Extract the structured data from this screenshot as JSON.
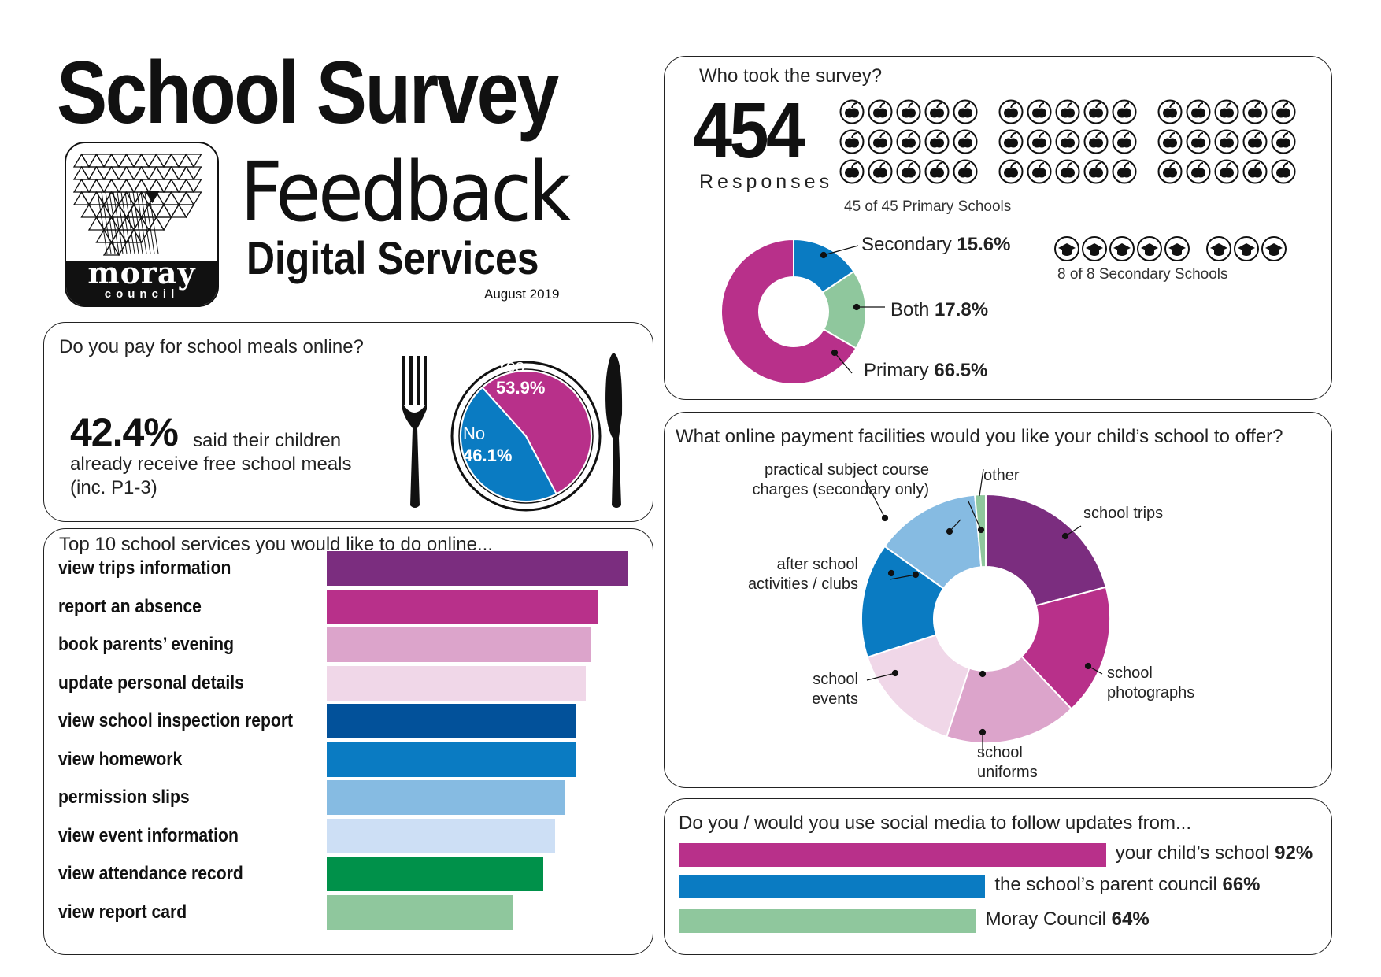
{
  "header": {
    "title": "School Survey",
    "subtitle": "Feedback",
    "department": "Digital Services",
    "date": "August 2019",
    "logo_text": "moray",
    "logo_subtext": "council"
  },
  "colors": {
    "purple": "#7b2d7f",
    "magenta": "#b8308a",
    "pink": "#dca4cb",
    "light_pink": "#f0d7e8",
    "navy": "#02519a",
    "blue": "#0a7bc2",
    "light_blue": "#86bbe2",
    "pale_blue": "#cddff5",
    "green": "#00914a",
    "light_green": "#8fc79d"
  },
  "respondents": {
    "title": "Who took the survey?",
    "count": "454",
    "count_label": "Responses",
    "primary_note": "45 of 45 Primary Schools",
    "secondary_note": "8 of 8 Secondary Schools",
    "primary_icon": "apple-icon",
    "secondary_icon": "graduation-cap-icon",
    "primary_icon_count": 45,
    "secondary_icon_count": 8,
    "labels": {
      "secondary": "Secondary",
      "secondary_pct": "15.6%",
      "both": "Both",
      "both_pct": "17.8%",
      "primary": "Primary",
      "primary_pct": "66.5%"
    }
  },
  "meals": {
    "title": "Do you pay for school meals online?",
    "stat": "42.4%",
    "stat_text_1": "said their children",
    "stat_text_2": "already receive free school meals",
    "stat_text_3": "(inc. P1-3)",
    "yes_label": "Yes",
    "yes_pct": "53.9%",
    "no_label": "No",
    "no_pct": "46.1%",
    "fork_icon": "fork-icon",
    "knife_icon": "knife-icon"
  },
  "services": {
    "title": "Top 10 school services you would like to do online..."
  },
  "payments": {
    "title": "What online payment facilities would you like your child’s school to offer?",
    "labels": {
      "practical_1": "practical subject course",
      "practical_2": "charges (secondary only)",
      "other": "other",
      "trips": "school trips",
      "after_1": "after school",
      "after_2": "activities / clubs",
      "photos_1": "school",
      "photos_2": "photographs",
      "events_1": "school",
      "events_2": "events",
      "uniforms_1": "school",
      "uniforms_2": "uniforms"
    }
  },
  "social": {
    "title": "Do you / would you use social media to follow updates from...",
    "items": [
      {
        "label": "your child’s school",
        "pct": "92%"
      },
      {
        "label": "the school’s parent council",
        "pct": "66%"
      },
      {
        "label": "Moray Council",
        "pct": "64%"
      }
    ]
  },
  "chart_data": [
    {
      "type": "pie",
      "title": "Who took the survey?",
      "categories": [
        "Secondary",
        "Both",
        "Primary"
      ],
      "values": [
        15.6,
        17.8,
        66.5
      ],
      "colors": [
        "#0a7bc2",
        "#8fc79d",
        "#b8308a"
      ],
      "donut": true
    },
    {
      "type": "pie",
      "title": "Do you pay for school meals online?",
      "categories": [
        "Yes",
        "No"
      ],
      "values": [
        53.9,
        46.1
      ],
      "colors": [
        "#b8308a",
        "#0a7bc2"
      ]
    },
    {
      "type": "bar",
      "orientation": "horizontal",
      "title": "Top 10 school services you would like to do online...",
      "categories": [
        "view trips information",
        "report an absence",
        "book parents’ evening",
        "update personal details",
        "view school inspection report",
        "view homework",
        "permission slips",
        "view event information",
        "view attendance record",
        "view report card"
      ],
      "values": [
        100,
        90,
        88,
        86,
        83,
        83,
        79,
        76,
        72,
        62
      ],
      "colors": [
        "#7b2d7f",
        "#b8308a",
        "#dca4cb",
        "#f0d7e8",
        "#02519a",
        "#0a7bc2",
        "#86bbe2",
        "#cddff5",
        "#00914a",
        "#8fc79d"
      ]
    },
    {
      "type": "pie",
      "title": "What online payment facilities would you like your child’s school to offer?",
      "categories": [
        "school trips",
        "school photographs",
        "school uniforms",
        "school events",
        "after school activities / clubs",
        "practical subject course charges (secondary only)",
        "other"
      ],
      "values": [
        20.9,
        17.0,
        17.2,
        14.9,
        14.9,
        13.7,
        1.4
      ],
      "colors": [
        "#7b2d7f",
        "#b8308a",
        "#dca4cb",
        "#f0d7e8",
        "#0a7bc2",
        "#86bbe2",
        "#8fc79d"
      ],
      "donut": true
    },
    {
      "type": "bar",
      "orientation": "horizontal",
      "title": "Do you / would you use social media to follow updates from...",
      "categories": [
        "your child’s school",
        "the school’s parent council",
        "Moray Council"
      ],
      "values": [
        92,
        66,
        64
      ],
      "colors": [
        "#b8308a",
        "#0a7bc2",
        "#8fc79d"
      ]
    }
  ]
}
